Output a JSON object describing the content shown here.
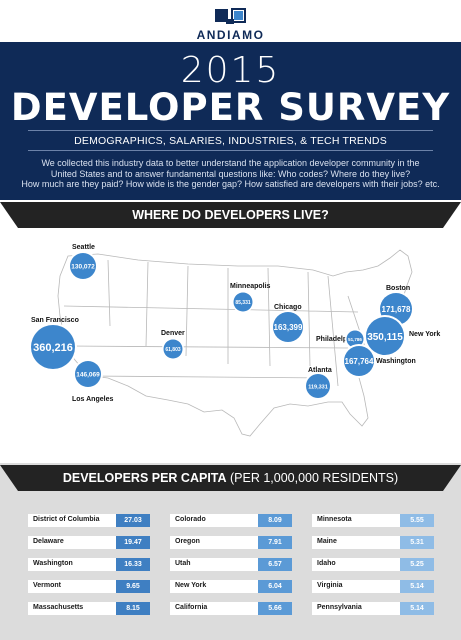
{
  "brand": {
    "name": "ANDIAMO"
  },
  "hero": {
    "year": "2015",
    "title": "DEVELOPER SURVEY",
    "subtitle": "DEMOGRAPHICS, SALARIES, INDUSTRIES, & TECH TRENDS",
    "intro_line1": "We collected this industry data to better understand the application developer community in the",
    "intro_line2": "United States and to answer fundamental questions like:  Who codes?  Where do they live?",
    "intro_line3": "How much are they paid? How wide is the gender gap? How satisfied are developers with their jobs? etc."
  },
  "where_section": {
    "title": "WHERE DO DEVELOPERS LIVE?"
  },
  "cities": [
    {
      "name": "Seattle",
      "value": "130,072"
    },
    {
      "name": "San Francisco",
      "value": "360,216"
    },
    {
      "name": "Los Angeles",
      "value": "146,069"
    },
    {
      "name": "Denver",
      "value": "61,803"
    },
    {
      "name": "Minneapolis",
      "value": "85,331"
    },
    {
      "name": "Chicago",
      "value": "163,399"
    },
    {
      "name": "Atlanta",
      "value": "119,331"
    },
    {
      "name": "Boston",
      "value": "171,678"
    },
    {
      "name": "Philadelphia",
      "value": "51,786"
    },
    {
      "name": "New York",
      "value": "350,115"
    },
    {
      "name": "Washington",
      "value": "167,764"
    }
  ],
  "per_capita": {
    "title_bold": "DEVELOPERS PER CAPITA",
    "title_rest": " (PER 1,000,000 RESIDENTS)",
    "columns": [
      [
        {
          "state": "District of Columbia",
          "value": "27.03"
        },
        {
          "state": "Delaware",
          "value": "19.47"
        },
        {
          "state": "Washington",
          "value": "16.33"
        },
        {
          "state": "Vermont",
          "value": "9.65"
        },
        {
          "state": "Massachusetts",
          "value": "8.15"
        }
      ],
      [
        {
          "state": "Colorado",
          "value": "8.09"
        },
        {
          "state": "Oregon",
          "value": "7.91"
        },
        {
          "state": "Utah",
          "value": "6.57"
        },
        {
          "state": "New York",
          "value": "6.04"
        },
        {
          "state": "California",
          "value": "5.66"
        }
      ],
      [
        {
          "state": "Minnesota",
          "value": "5.55"
        },
        {
          "state": "Maine",
          "value": "5.31"
        },
        {
          "state": "Idaho",
          "value": "5.25"
        },
        {
          "state": "Virginia",
          "value": "5.14"
        },
        {
          "state": "Pennsylvania",
          "value": "5.14"
        }
      ]
    ]
  },
  "colors": {
    "navy": "#0f2a57",
    "banner": "#232323",
    "bubble": "#3d86cc",
    "bar_col1": "#3f7fc2",
    "bar_col2": "#5b9ad6",
    "bar_col3": "#8fbce6"
  }
}
